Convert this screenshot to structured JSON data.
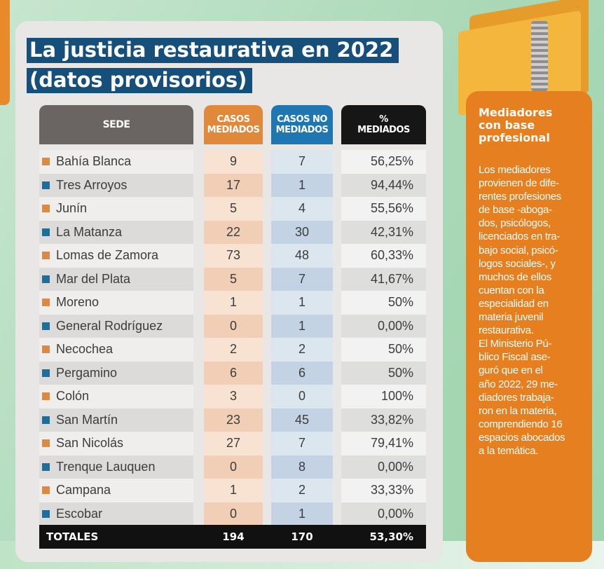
{
  "title": {
    "line1": "La justicia restaurativa en 2022",
    "line2": "(datos provisorios)"
  },
  "table": {
    "headers": {
      "sede": "SEDE",
      "casos_l1": "CASOS",
      "casos_l2": "MEDIADOS",
      "no_l1": "CASOS NO",
      "no_l2": "MEDIADOS",
      "pct_l1": "%",
      "pct_l2": "MEDIADOS"
    },
    "rows": [
      {
        "sede": "Bahía Blanca",
        "casos": "9",
        "no": "7",
        "pct": "56,25%"
      },
      {
        "sede": "Tres Arroyos",
        "casos": "17",
        "no": "1",
        "pct": "94,44%"
      },
      {
        "sede": "Junín",
        "casos": "5",
        "no": "4",
        "pct": "55,56%"
      },
      {
        "sede": "La Matanza",
        "casos": "22",
        "no": "30",
        "pct": "42,31%"
      },
      {
        "sede": "Lomas de Zamora",
        "casos": "73",
        "no": "48",
        "pct": "60,33%"
      },
      {
        "sede": "Mar del Plata",
        "casos": "5",
        "no": "7",
        "pct": "41,67%"
      },
      {
        "sede": "Moreno",
        "casos": "1",
        "no": "1",
        "pct": "50%"
      },
      {
        "sede": "General Rodríguez",
        "casos": "0",
        "no": "1",
        "pct": "0,00%"
      },
      {
        "sede": "Necochea",
        "casos": "2",
        "no": "2",
        "pct": "50%"
      },
      {
        "sede": "Pergamino",
        "casos": "6",
        "no": "6",
        "pct": "50%"
      },
      {
        "sede": "Colón",
        "casos": "3",
        "no": "0",
        "pct": "100%"
      },
      {
        "sede": "San Martín",
        "casos": "23",
        "no": "45",
        "pct": "33,82%"
      },
      {
        "sede": "San Nicolás",
        "casos": "27",
        "no": "7",
        "pct": "79,41%"
      },
      {
        "sede": "Trenque Lauquen",
        "casos": "0",
        "no": "8",
        "pct": "0,00%"
      },
      {
        "sede": "Campana",
        "casos": "1",
        "no": "2",
        "pct": "33,33%"
      },
      {
        "sede": "Escobar",
        "casos": "0",
        "no": "1",
        "pct": "0,00%"
      }
    ],
    "totals": {
      "label": "TOTALES",
      "casos": "194",
      "no": "170",
      "pct": "53,30%"
    }
  },
  "sidebar": {
    "title_lines": [
      "Mediadores",
      "con base",
      "profesional"
    ],
    "body_lines": [
      "Los mediadores",
      "provienen de dife-",
      "rentes profesiones",
      "de base -aboga-",
      "dos, psicólogos,",
      "licenciados en tra-",
      "bajo social, psicó-",
      "logos sociales-, y",
      "muchos de ellos",
      "cuentan con la",
      "especialidad en",
      "materia juvenil",
      "restaurativa.",
      "El Ministerio Pú-",
      "blico Fiscal ase-",
      "guró que en el",
      "año 2022, 29 me-",
      "diadores trabaja-",
      "ron en la materia,",
      "comprendiendo 16",
      "espacios abocados",
      "a la temática."
    ]
  },
  "colors": {
    "title_bg": "#154f7a",
    "casos_header": "#e0893b",
    "no_header": "#1f77b2",
    "pct_header": "#161616",
    "sidebar_bg": "#e57f1f"
  },
  "icons": {
    "folder": "folder-zipper-icon",
    "bullet_odd": "orange-square-bullet",
    "bullet_even": "blue-square-bullet"
  }
}
